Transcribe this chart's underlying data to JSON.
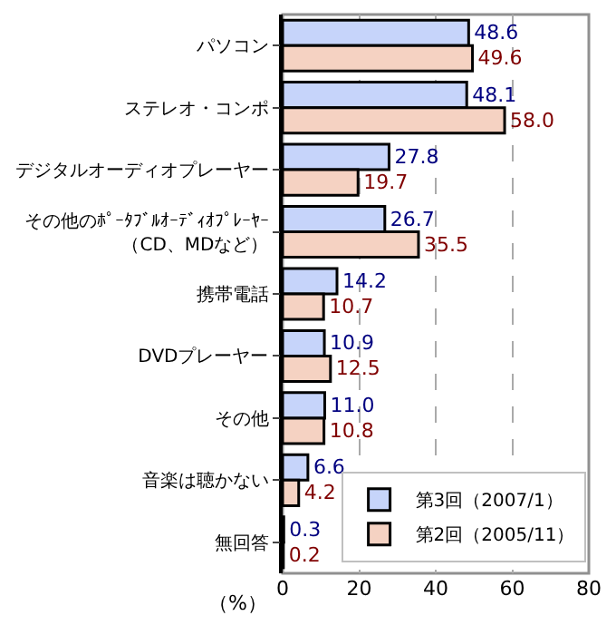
{
  "chart_data": {
    "type": "bar",
    "orientation": "horizontal",
    "categories": [
      "パソコン",
      "ステレオ・コンポ",
      "デジタルオーディオプレーヤー",
      "その他のﾎﾟｰﾀﾌﾞﾙｵｰﾃﾞｨｵﾌﾟﾚｰﾔｰ（CD、MDなど）",
      "携帯電話",
      "DVDプレーヤー",
      "その他",
      "音楽は聴かない",
      "無回答"
    ],
    "series": [
      {
        "name": "第3回（2007/1）",
        "color": "#c6d4fa",
        "values": [
          48.6,
          48.1,
          27.8,
          26.7,
          14.2,
          10.9,
          11.0,
          6.6,
          0.3
        ],
        "value_labels": [
          "48.6",
          "48.1",
          "27.8",
          "26.7",
          "14.2",
          "10.9",
          "11.0",
          "6.6",
          "0.3"
        ]
      },
      {
        "name": "第2回（2005/11）",
        "color": "#f5d2c2",
        "values": [
          49.6,
          58.0,
          19.7,
          35.5,
          10.7,
          12.5,
          10.8,
          4.2,
          0.2
        ],
        "value_labels": [
          "49.6",
          "58.0",
          "19.7",
          "35.5",
          "10.7",
          "12.5",
          "10.8",
          "4.2",
          "0.2"
        ]
      }
    ],
    "xlabel": "（%）",
    "xlim": [
      0,
      80
    ],
    "xticks": [
      0,
      20,
      40,
      60,
      80
    ],
    "grid": "x",
    "legend": "bottom right"
  }
}
